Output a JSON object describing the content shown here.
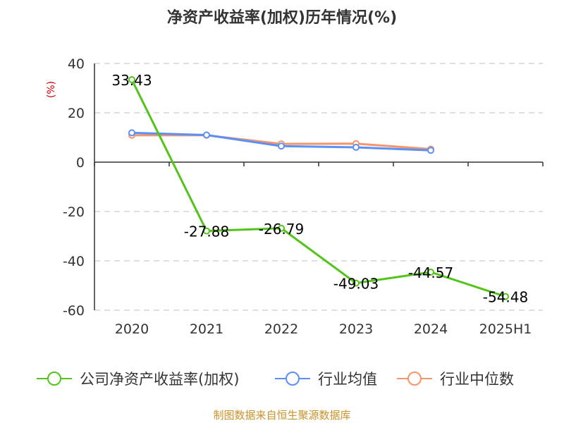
{
  "chart_data": {
    "type": "line",
    "title": "净资产收益率(加权)历年情况(%)",
    "ylabel": "(%)",
    "xlabel": "",
    "categories": [
      "2020",
      "2021",
      "2022",
      "2023",
      "2024",
      "2025H1"
    ],
    "ylim": [
      -60,
      40
    ],
    "yticks": [
      40,
      20,
      0,
      -20,
      -40,
      -60
    ],
    "grid": true,
    "legend_position": "bottom",
    "series": [
      {
        "name": "公司净资产收益率(加权)",
        "color": "#52c41a",
        "values": [
          33.43,
          -27.88,
          -26.79,
          -49.03,
          -44.57,
          -54.48
        ],
        "labels": [
          "33.43",
          "-27.88",
          "-26.79",
          "-49.03",
          "-44.57",
          "-54.48"
        ]
      },
      {
        "name": "行业均值",
        "color": "#5b8ff9",
        "values": [
          11.9,
          11.0,
          6.5,
          6.0,
          4.8,
          null
        ]
      },
      {
        "name": "行业中位数",
        "color": "#f4956b",
        "values": [
          10.9,
          10.9,
          7.4,
          7.5,
          5.3,
          null
        ]
      }
    ],
    "source": "制图数据来自恒生聚源数据库"
  }
}
